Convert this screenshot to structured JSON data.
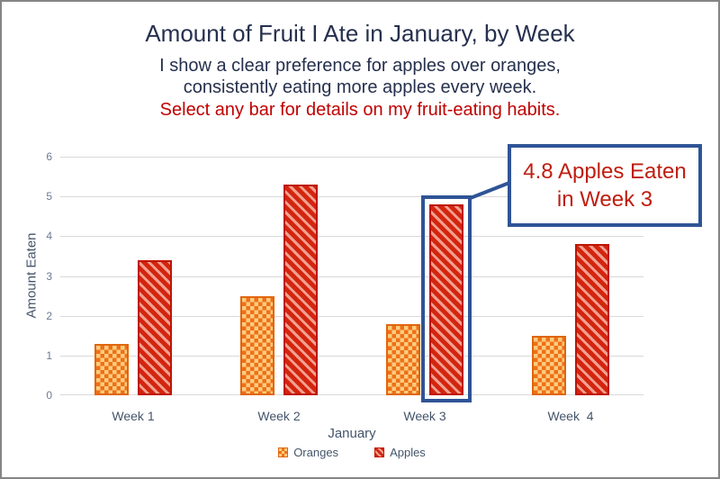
{
  "frame": {
    "border_color": "#858585",
    "background": "#FFFFFF"
  },
  "header": {
    "title": "Amount of Fruit I Ate in January, by Week",
    "subtitle_line1": "I show a clear preference for apples over oranges,",
    "subtitle_line2": "consistently eating more apples every week.",
    "cta": "Select any bar for details on my fruit-eating habits.",
    "title_color": "#26304E",
    "cta_color": "#C00000"
  },
  "chart_data": {
    "type": "bar",
    "title": "Amount of Fruit I Ate in January, by Week",
    "categories": [
      "Week 1",
      "Week 2",
      "Week 3",
      "Week  4"
    ],
    "series": [
      {
        "name": "Oranges",
        "values": [
          1.3,
          2.5,
          1.8,
          1.5
        ],
        "pattern": "checkerboard",
        "fill": "#EE7018",
        "pattern_color": "#FBCB7E",
        "border_color": "#E0660D"
      },
      {
        "name": "Apples",
        "values": [
          3.4,
          5.3,
          4.8,
          3.8
        ],
        "pattern": "diagonal-stripes",
        "fill": "#D3250F",
        "pattern_color": "#F2A08F",
        "border_color": "#BF1500"
      }
    ],
    "xlabel": "January",
    "ylabel": "Amount Eaten",
    "ylim": [
      0,
      6
    ],
    "yticks": [
      0,
      1,
      2,
      3,
      4,
      5,
      6
    ],
    "grid": true,
    "gridline_color": "#D9D9D9",
    "axis_tick_color": "#6B7A93",
    "axis_label_color": "#44546A",
    "legend_position": "bottom",
    "selection": {
      "series": "Apples",
      "category": "Week 3",
      "value": 4.8,
      "highlight_color": "#2F5496"
    }
  },
  "callout": {
    "line1": "4.8 Apples Eaten",
    "line2": "in Week 3",
    "text_color": "#BF1D10",
    "border_color": "#2F5496"
  }
}
